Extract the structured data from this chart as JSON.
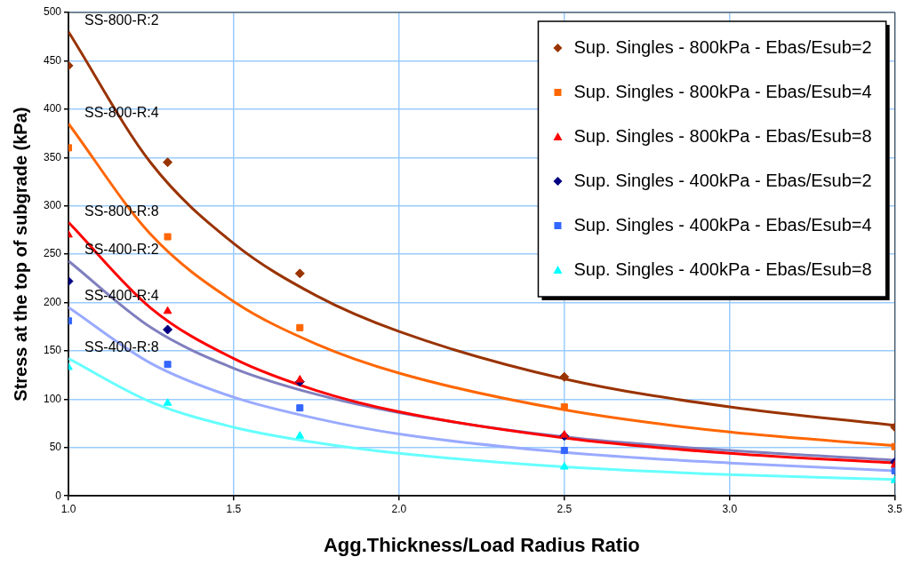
{
  "chart_data": {
    "type": "scatter",
    "xlabel": "Agg.Thickness/Load Radius Ratio",
    "ylabel": "Stress at the top of subgrade (kPa)",
    "xlim": [
      1,
      3.5
    ],
    "xticks": [
      {
        "value": 1,
        "label": "1.0"
      },
      {
        "value": 1.5,
        "label": "1.5"
      },
      {
        "value": 2,
        "label": "2.0"
      },
      {
        "value": 2.5,
        "label": "2.5"
      },
      {
        "value": 3,
        "label": "3.0"
      },
      {
        "value": 3.5,
        "label": "3.5"
      }
    ],
    "ylim": [
      0,
      500
    ],
    "yticks": [
      0,
      50,
      100,
      150,
      200,
      250,
      300,
      350,
      400,
      450,
      500
    ],
    "grid": true,
    "legend": "top right",
    "x": [
      1.0,
      1.3,
      1.7,
      2.5,
      3.5
    ],
    "series": [
      {
        "name": "Sup. Singles - 800kPa - Ebas/Esub=2",
        "color": "#993300",
        "marker": "diamond",
        "values": [
          445,
          345,
          230,
          123,
          71
        ]
      },
      {
        "name": "Sup. Singles - 800kPa - Ebas/Esub=4",
        "color": "#ff6600",
        "marker": "square",
        "values": [
          360,
          268,
          174,
          92,
          51
        ]
      },
      {
        "name": "Sup. Singles - 800kPa - Ebas/Esub=8",
        "color": "#ff0000",
        "marker": "triangle",
        "values": [
          270,
          191,
          120,
          63,
          32
        ]
      },
      {
        "name": "Sup. Singles - 400kPa - Ebas/Esub=2",
        "color": "#000080",
        "marker": "diamond",
        "values": [
          222,
          172,
          118,
          62,
          35
        ]
      },
      {
        "name": "Sup. Singles - 400kPa - Ebas/Esub=4",
        "color": "#3366ff",
        "marker": "square",
        "values": [
          181,
          136,
          91,
          47,
          26
        ]
      },
      {
        "name": "Sup. Singles - 400kPa - Ebas/Esub=8",
        "color": "#00ffff",
        "marker": "triangle",
        "values": [
          133,
          96,
          62,
          30,
          16
        ]
      },
      {
        "type": "line",
        "name": "SS-800-R:2",
        "color": "#993300",
        "x": [
          1,
          1.25,
          1.5,
          1.75,
          2,
          2.5,
          3,
          3.5
        ],
        "values": [
          480,
          344,
          261,
          207,
          170,
          121,
          92,
          73
        ]
      },
      {
        "type": "line",
        "name": "SS-800-R:4",
        "color": "#ff6600",
        "x": [
          1,
          1.25,
          1.5,
          1.75,
          2,
          2.5,
          3,
          3.5
        ],
        "values": [
          385,
          270,
          201,
          157,
          127,
          89,
          66,
          52
        ]
      },
      {
        "type": "line",
        "name": "SS-800-R:8",
        "color": "#ff0000",
        "x": [
          1,
          1.25,
          1.5,
          1.75,
          2,
          2.5,
          3,
          3.5
        ],
        "values": [
          283,
          194,
          142,
          109,
          87,
          60,
          44,
          34
        ]
      },
      {
        "type": "line",
        "name": "SS-400-R:2",
        "color": "#7f7fbf",
        "x": [
          1,
          1.25,
          1.5,
          1.75,
          2,
          2.5,
          3,
          3.5
        ],
        "values": [
          243,
          174,
          132,
          105,
          86,
          61,
          47,
          37
        ]
      },
      {
        "type": "line",
        "name": "SS-400-R:4",
        "color": "#99aaff",
        "x": [
          1,
          1.25,
          1.5,
          1.75,
          2,
          2.5,
          3,
          3.5
        ],
        "values": [
          195,
          137,
          102,
          80,
          64,
          45,
          34,
          26
        ]
      },
      {
        "type": "line",
        "name": "SS-400-R:8",
        "color": "#66ffff",
        "x": [
          1,
          1.25,
          1.5,
          1.75,
          2,
          2.5,
          3,
          3.5
        ],
        "values": [
          142,
          97,
          71,
          55,
          44,
          30,
          22,
          17
        ]
      }
    ]
  }
}
